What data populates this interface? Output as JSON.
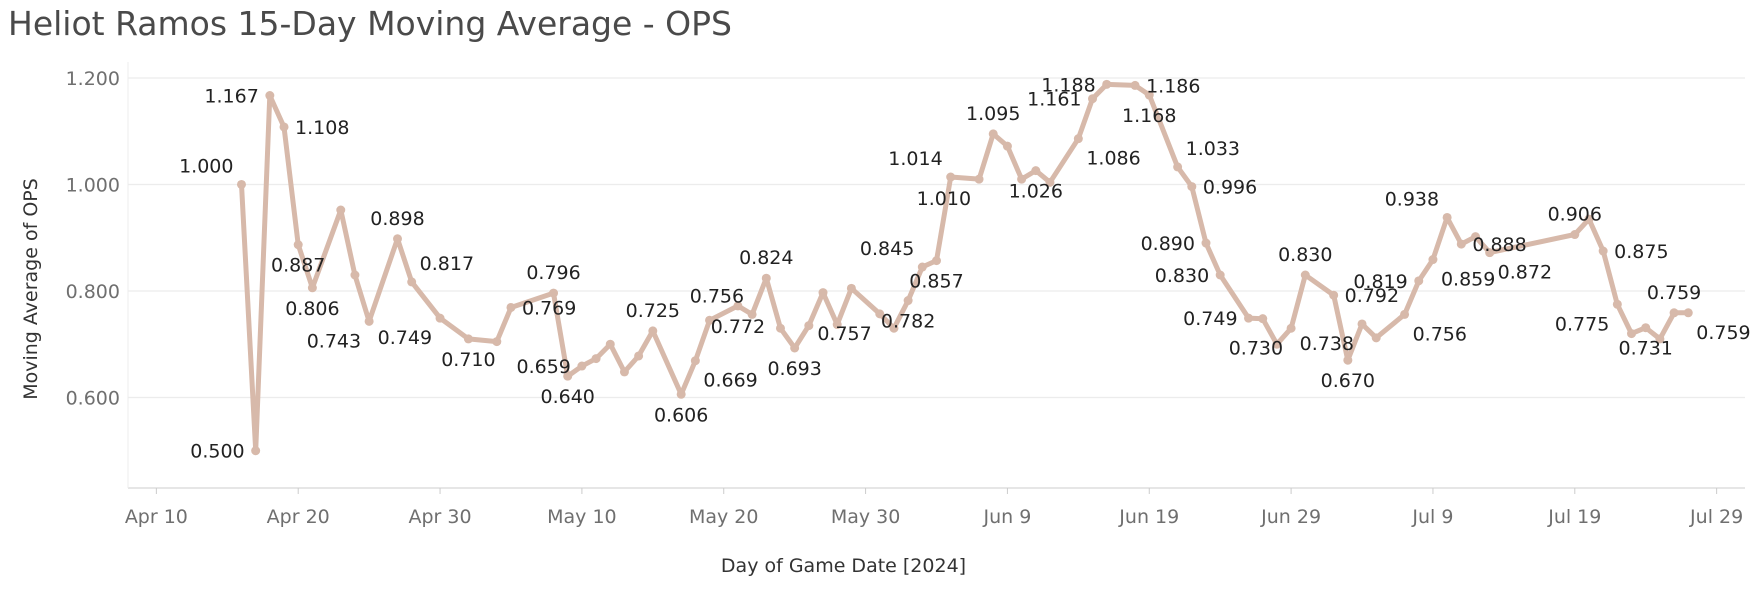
{
  "title": "Heliot Ramos 15-Day Moving Average - OPS",
  "colors": {
    "line": "#d7b9aa",
    "grid": "#ececec",
    "axis": "#cccccc"
  },
  "chart_data": {
    "type": "line",
    "title": "Heliot Ramos 15-Day Moving Average - OPS",
    "xlabel": "Day of Game Date [2024]",
    "ylabel": "Moving Average of OPS",
    "ylim": [
      0.43,
      1.23
    ],
    "yticks": [
      0.6,
      0.8,
      1.0,
      1.2
    ],
    "ytick_labels": [
      "0.600",
      "0.800",
      "1.000",
      "1.200"
    ],
    "xlim": [
      "2024-04-08",
      "2024-07-31"
    ],
    "xticks": [
      "2024-04-10",
      "2024-04-20",
      "2024-04-30",
      "2024-05-10",
      "2024-05-20",
      "2024-05-30",
      "2024-06-09",
      "2024-06-19",
      "2024-06-29",
      "2024-07-09",
      "2024-07-19",
      "2024-07-29"
    ],
    "xtick_labels": [
      "Apr 10",
      "Apr 20",
      "Apr 30",
      "May 10",
      "May 20",
      "May 30",
      "Jun 9",
      "Jun 19",
      "Jun 29",
      "Jul 9",
      "Jul 19",
      "Jul 29"
    ],
    "grid": true,
    "series": [
      {
        "name": "Moving Average of OPS",
        "points": [
          {
            "date": "2024-04-16",
            "value": 1.0,
            "label": "1.000",
            "labelPos": "above-left"
          },
          {
            "date": "2024-04-17",
            "value": 0.5,
            "label": "0.500",
            "labelPos": "left"
          },
          {
            "date": "2024-04-18",
            "value": 1.167,
            "label": "1.167",
            "labelPos": "left"
          },
          {
            "date": "2024-04-19",
            "value": 1.108,
            "label": "1.108",
            "labelPos": "right"
          },
          {
            "date": "2024-04-20",
            "value": 0.887,
            "label": "0.887",
            "labelPos": "below"
          },
          {
            "date": "2024-04-21",
            "value": 0.806,
            "label": "0.806",
            "labelPos": "below"
          },
          {
            "date": "2024-04-23",
            "value": 0.952,
            "label": "",
            "labelPos": "none"
          },
          {
            "date": "2024-04-24",
            "value": 0.83,
            "label": "",
            "labelPos": "none"
          },
          {
            "date": "2024-04-25",
            "value": 0.743,
            "label": "0.743",
            "labelPos": "below-left"
          },
          {
            "date": "2024-04-27",
            "value": 0.898,
            "label": "0.898",
            "labelPos": "above"
          },
          {
            "date": "2024-04-28",
            "value": 0.817,
            "label": "0.817",
            "labelPos": "above-right"
          },
          {
            "date": "2024-04-30",
            "value": 0.749,
            "label": "0.749",
            "labelPos": "below-left"
          },
          {
            "date": "2024-05-02",
            "value": 0.71,
            "label": "0.710",
            "labelPos": "below"
          },
          {
            "date": "2024-05-04",
            "value": 0.705,
            "label": "",
            "labelPos": "none"
          },
          {
            "date": "2024-05-05",
            "value": 0.769,
            "label": "0.769",
            "labelPos": "right"
          },
          {
            "date": "2024-05-08",
            "value": 0.796,
            "label": "0.796",
            "labelPos": "above"
          },
          {
            "date": "2024-05-09",
            "value": 0.64,
            "label": "0.640",
            "labelPos": "below"
          },
          {
            "date": "2024-05-10",
            "value": 0.659,
            "label": "0.659",
            "labelPos": "left"
          },
          {
            "date": "2024-05-11",
            "value": 0.673,
            "label": "",
            "labelPos": "none"
          },
          {
            "date": "2024-05-12",
            "value": 0.7,
            "label": "",
            "labelPos": "none"
          },
          {
            "date": "2024-05-13",
            "value": 0.648,
            "label": "",
            "labelPos": "none"
          },
          {
            "date": "2024-05-14",
            "value": 0.678,
            "label": "",
            "labelPos": "none"
          },
          {
            "date": "2024-05-15",
            "value": 0.725,
            "label": "0.725",
            "labelPos": "above"
          },
          {
            "date": "2024-05-17",
            "value": 0.606,
            "label": "0.606",
            "labelPos": "below"
          },
          {
            "date": "2024-05-18",
            "value": 0.669,
            "label": "0.669",
            "labelPos": "below-right"
          },
          {
            "date": "2024-05-19",
            "value": 0.745,
            "label": "",
            "labelPos": "none"
          },
          {
            "date": "2024-05-21",
            "value": 0.772,
            "label": "0.772",
            "labelPos": "below"
          },
          {
            "date": "2024-05-22",
            "value": 0.756,
            "label": "0.756",
            "labelPos": "above-left"
          },
          {
            "date": "2024-05-23",
            "value": 0.824,
            "label": "0.824",
            "labelPos": "above"
          },
          {
            "date": "2024-05-24",
            "value": 0.73,
            "label": "",
            "labelPos": "none"
          },
          {
            "date": "2024-05-25",
            "value": 0.693,
            "label": "0.693",
            "labelPos": "below"
          },
          {
            "date": "2024-05-26",
            "value": 0.735,
            "label": "",
            "labelPos": "none"
          },
          {
            "date": "2024-05-27",
            "value": 0.797,
            "label": "",
            "labelPos": "none"
          },
          {
            "date": "2024-05-28",
            "value": 0.737,
            "label": "",
            "labelPos": "none"
          },
          {
            "date": "2024-05-29",
            "value": 0.805,
            "label": "",
            "labelPos": "none"
          },
          {
            "date": "2024-05-31",
            "value": 0.757,
            "label": "0.757",
            "labelPos": "below-left"
          },
          {
            "date": "2024-06-01",
            "value": 0.73,
            "label": "",
            "labelPos": "none"
          },
          {
            "date": "2024-06-02",
            "value": 0.782,
            "label": "0.782",
            "labelPos": "below"
          },
          {
            "date": "2024-06-03",
            "value": 0.845,
            "label": "0.845",
            "labelPos": "above-left"
          },
          {
            "date": "2024-06-04",
            "value": 0.857,
            "label": "0.857",
            "labelPos": "below"
          },
          {
            "date": "2024-06-05",
            "value": 1.014,
            "label": "1.014",
            "labelPos": "above-left"
          },
          {
            "date": "2024-06-07",
            "value": 1.01,
            "label": "1.010",
            "labelPos": "below-left"
          },
          {
            "date": "2024-06-08",
            "value": 1.095,
            "label": "1.095",
            "labelPos": "above"
          },
          {
            "date": "2024-06-09",
            "value": 1.072,
            "label": "",
            "labelPos": "none"
          },
          {
            "date": "2024-06-10",
            "value": 1.01,
            "label": "",
            "labelPos": "none"
          },
          {
            "date": "2024-06-11",
            "value": 1.026,
            "label": "1.026",
            "labelPos": "below"
          },
          {
            "date": "2024-06-12",
            "value": 1.004,
            "label": "",
            "labelPos": "none"
          },
          {
            "date": "2024-06-14",
            "value": 1.086,
            "label": "1.086",
            "labelPos": "below-right"
          },
          {
            "date": "2024-06-15",
            "value": 1.161,
            "label": "1.161",
            "labelPos": "left"
          },
          {
            "date": "2024-06-16",
            "value": 1.188,
            "label": "1.188",
            "labelPos": "left"
          },
          {
            "date": "2024-06-18",
            "value": 1.186,
            "label": "1.186",
            "labelPos": "right"
          },
          {
            "date": "2024-06-19",
            "value": 1.168,
            "label": "1.168",
            "labelPos": "below"
          },
          {
            "date": "2024-06-21",
            "value": 1.033,
            "label": "1.033",
            "labelPos": "above-right"
          },
          {
            "date": "2024-06-22",
            "value": 0.996,
            "label": "0.996",
            "labelPos": "right"
          },
          {
            "date": "2024-06-23",
            "value": 0.89,
            "label": "0.890",
            "labelPos": "left"
          },
          {
            "date": "2024-06-24",
            "value": 0.83,
            "label": "0.830",
            "labelPos": "left"
          },
          {
            "date": "2024-06-26",
            "value": 0.749,
            "label": "0.749",
            "labelPos": "left"
          },
          {
            "date": "2024-06-27",
            "value": 0.748,
            "label": "",
            "labelPos": "none"
          },
          {
            "date": "2024-06-28",
            "value": 0.7,
            "label": "",
            "labelPos": "none"
          },
          {
            "date": "2024-06-29",
            "value": 0.73,
            "label": "0.730",
            "labelPos": "below-left"
          },
          {
            "date": "2024-06-30",
            "value": 0.83,
            "label": "0.830",
            "labelPos": "above"
          },
          {
            "date": "2024-07-02",
            "value": 0.792,
            "label": "0.792",
            "labelPos": "right"
          },
          {
            "date": "2024-07-03",
            "value": 0.67,
            "label": "0.670",
            "labelPos": "below"
          },
          {
            "date": "2024-07-04",
            "value": 0.738,
            "label": "0.738",
            "labelPos": "below-left"
          },
          {
            "date": "2024-07-05",
            "value": 0.712,
            "label": "",
            "labelPos": "none"
          },
          {
            "date": "2024-07-07",
            "value": 0.756,
            "label": "0.756",
            "labelPos": "below-right"
          },
          {
            "date": "2024-07-08",
            "value": 0.819,
            "label": "0.819",
            "labelPos": "left"
          },
          {
            "date": "2024-07-09",
            "value": 0.859,
            "label": "0.859",
            "labelPos": "below-right"
          },
          {
            "date": "2024-07-10",
            "value": 0.938,
            "label": "0.938",
            "labelPos": "above-left"
          },
          {
            "date": "2024-07-11",
            "value": 0.888,
            "label": "0.888",
            "labelPos": "right"
          },
          {
            "date": "2024-07-12",
            "value": 0.902,
            "label": "",
            "labelPos": "none"
          },
          {
            "date": "2024-07-13",
            "value": 0.872,
            "label": "0.872",
            "labelPos": "below-right"
          },
          {
            "date": "2024-07-19",
            "value": 0.906,
            "label": "0.906",
            "labelPos": "above"
          },
          {
            "date": "2024-07-20",
            "value": 0.935,
            "label": "",
            "labelPos": "none"
          },
          {
            "date": "2024-07-21",
            "value": 0.875,
            "label": "0.875",
            "labelPos": "right"
          },
          {
            "date": "2024-07-22",
            "value": 0.775,
            "label": "0.775",
            "labelPos": "below-left"
          },
          {
            "date": "2024-07-23",
            "value": 0.72,
            "label": "",
            "labelPos": "none"
          },
          {
            "date": "2024-07-24",
            "value": 0.731,
            "label": "0.731",
            "labelPos": "below"
          },
          {
            "date": "2024-07-25",
            "value": 0.71,
            "label": "",
            "labelPos": "none"
          },
          {
            "date": "2024-07-26",
            "value": 0.759,
            "label": "0.759",
            "labelPos": "above"
          },
          {
            "date": "2024-07-27",
            "value": 0.759,
            "label": "0.759",
            "labelPos": "below-right"
          }
        ]
      }
    ]
  }
}
